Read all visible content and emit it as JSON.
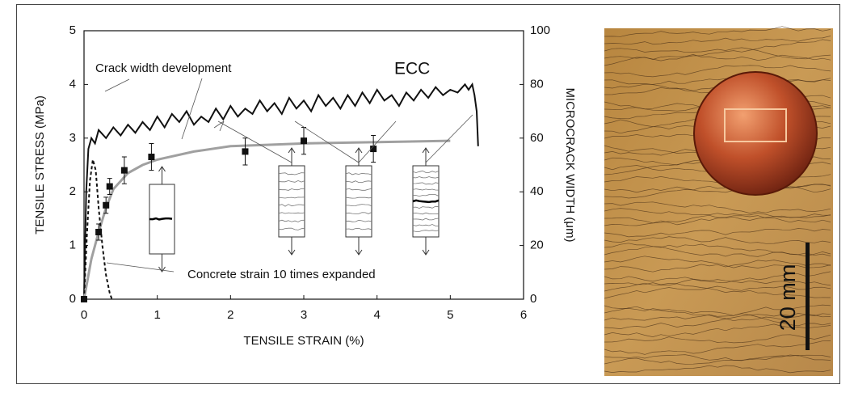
{
  "chart_data": {
    "type": "line",
    "xlabel": "TENSILE STRAIN (%)",
    "ylabel": "TENSILE STRESS (MPa)",
    "y2label": "MICROCRACK WIDTH (μm)",
    "xlim": [
      0,
      6
    ],
    "xticks": [
      0,
      1,
      2,
      3,
      4,
      5,
      6
    ],
    "ylim": [
      0,
      5
    ],
    "yticks": [
      0,
      1,
      2,
      3,
      4,
      5
    ],
    "y2lim": [
      0,
      100
    ],
    "y2ticks": [
      0,
      20,
      40,
      60,
      80,
      100
    ],
    "series": [
      {
        "name": "ECC",
        "color": "#111111",
        "x": [
          0,
          0.03,
          0.06,
          0.1,
          0.15,
          0.2,
          0.3,
          0.4,
          0.5,
          0.6,
          0.7,
          0.8,
          0.9,
          1.0,
          1.1,
          1.2,
          1.3,
          1.4,
          1.5,
          1.6,
          1.7,
          1.8,
          1.9,
          2.0,
          2.1,
          2.2,
          2.3,
          2.4,
          2.5,
          2.6,
          2.7,
          2.8,
          2.9,
          3.0,
          3.1,
          3.2,
          3.3,
          3.4,
          3.5,
          3.6,
          3.7,
          3.8,
          3.9,
          4.0,
          4.1,
          4.2,
          4.3,
          4.4,
          4.5,
          4.6,
          4.7,
          4.8,
          4.9,
          5.0,
          5.1,
          5.2,
          5.25,
          5.3,
          5.33,
          5.36,
          5.38
        ],
        "values": [
          0,
          2.0,
          2.8,
          3.0,
          2.9,
          3.15,
          3.0,
          3.2,
          3.05,
          3.25,
          3.1,
          3.3,
          3.15,
          3.4,
          3.2,
          3.45,
          3.3,
          3.5,
          3.25,
          3.4,
          3.3,
          3.55,
          3.35,
          3.6,
          3.4,
          3.55,
          3.45,
          3.7,
          3.5,
          3.65,
          3.45,
          3.75,
          3.55,
          3.7,
          3.5,
          3.8,
          3.6,
          3.75,
          3.55,
          3.8,
          3.6,
          3.85,
          3.65,
          3.9,
          3.7,
          3.8,
          3.6,
          3.85,
          3.7,
          3.9,
          3.75,
          3.95,
          3.8,
          3.9,
          3.85,
          4.0,
          3.9,
          4.0,
          3.8,
          3.5,
          2.85
        ]
      },
      {
        "color": "#a0a0a0",
        "axis": "y2",
        "x": [
          0,
          0.1,
          0.2,
          0.3,
          0.4,
          0.6,
          0.8,
          1.0,
          1.5,
          2.0,
          2.5,
          3.0,
          4.0,
          5.0
        ],
        "values": [
          0,
          15,
          25,
          34,
          41,
          47,
          50,
          52,
          55,
          57,
          57.5,
          58,
          58.5,
          59
        ]
      },
      {
        "color": "#111111",
        "axis": "y2",
        "x": [
          0,
          0.2,
          0.3,
          0.35,
          0.55,
          0.92,
          2.2,
          3.0,
          3.95
        ],
        "values": [
          0,
          25,
          35,
          42,
          48,
          53,
          55,
          59,
          56
        ],
        "errors": [
          0,
          3,
          3,
          3,
          5,
          5,
          5,
          5,
          5
        ]
      },
      {
        "color": "#111111",
        "dashed": true,
        "x": [
          0,
          0.04,
          0.08,
          0.12,
          0.16,
          0.2,
          0.25,
          0.3,
          0.35,
          0.38
        ],
        "values": [
          0,
          1.2,
          2.2,
          2.6,
          2.4,
          1.7,
          1.0,
          0.45,
          0.12,
          0
        ]
      }
    ],
    "annotations": [
      {
        "text": "Crack width development"
      },
      {
        "text": "Concrete strain 10 times expanded"
      }
    ]
  },
  "photo": {
    "scale_label": "20 mm"
  }
}
